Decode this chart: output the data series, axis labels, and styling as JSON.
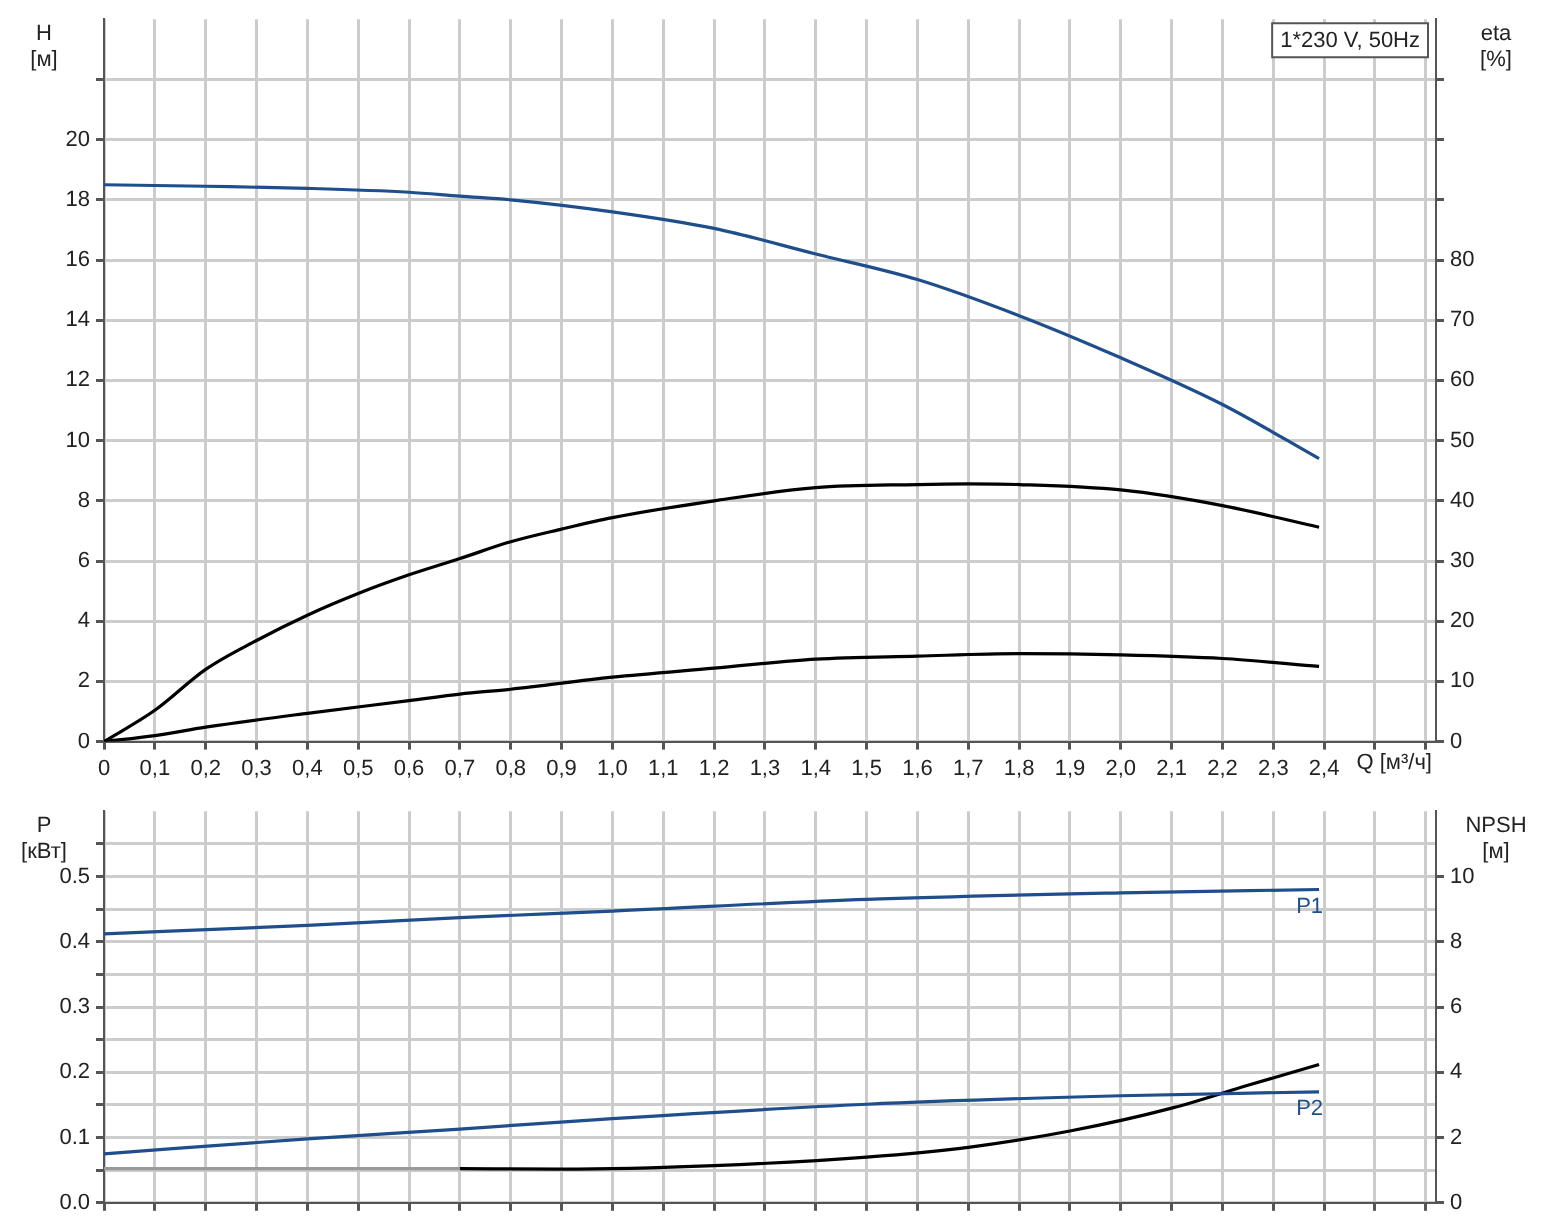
{
  "chart_data": [
    {
      "type": "line",
      "title": "1*230 V, 50Hz",
      "xlabel": "Q [м³/ч]",
      "ylabel": "H [м]",
      "y2label": "eta [%]",
      "grid": true,
      "xlim": [
        0,
        2.62
      ],
      "xticks": [
        0,
        {
          "value": 0.1,
          "label": "0,1"
        },
        {
          "value": 0.2,
          "label": "0,2"
        },
        {
          "value": 0.3,
          "label": "0,3"
        },
        {
          "value": 0.4,
          "label": "0,4"
        },
        {
          "value": 0.5,
          "label": "0,5"
        },
        {
          "value": 0.6,
          "label": "0,6"
        },
        {
          "value": 0.7,
          "label": "0,7"
        },
        {
          "value": 0.8,
          "label": "0,8"
        },
        {
          "value": 0.9,
          "label": "0,9"
        },
        {
          "value": 1,
          "label": "1,0"
        },
        {
          "value": 1.1,
          "label": "1,1"
        },
        {
          "value": 1.2,
          "label": "1,2"
        },
        {
          "value": 1.3,
          "label": "1,3"
        },
        {
          "value": 1.4,
          "label": "1,4"
        },
        {
          "value": 1.5,
          "label": "1,5"
        },
        {
          "value": 1.6,
          "label": "1,6"
        },
        {
          "value": 1.7,
          "label": "1,7"
        },
        {
          "value": 1.8,
          "label": "1,8"
        },
        {
          "value": 1.9,
          "label": "1,9"
        },
        {
          "value": 2,
          "label": "2,0"
        },
        {
          "value": 2.1,
          "label": "2,1"
        },
        {
          "value": 2.2,
          "label": "2,2"
        },
        {
          "value": 2.3,
          "label": "2,3"
        },
        {
          "value": 2.4,
          "label": "2,4"
        },
        {
          "value": 2.5,
          "label": null
        },
        {
          "value": 2.6,
          "label": null
        }
      ],
      "ylim": [
        0,
        24
      ],
      "yticks": [
        0,
        2,
        4,
        6,
        8,
        10,
        12,
        14,
        16,
        18,
        20,
        {
          "value": 22,
          "label": null
        }
      ],
      "y2lim": [
        0,
        120
      ],
      "y2ticks": [
        0,
        10,
        20,
        30,
        40,
        50,
        60,
        70,
        80,
        {
          "value": 90,
          "label": null
        },
        {
          "value": 100,
          "label": null
        },
        {
          "value": 110,
          "label": null
        }
      ],
      "series": [
        {
          "color": "#1f4e8c",
          "x": [
            0,
            0.2,
            0.4,
            0.6,
            0.7,
            0.8,
            1.0,
            1.2,
            1.4,
            1.6,
            1.8,
            2.0,
            2.2,
            2.39
          ],
          "values": [
            18.5,
            18.45,
            18.38,
            18.25,
            18.12,
            18.0,
            17.6,
            17.05,
            16.2,
            15.35,
            14.15,
            12.75,
            11.2,
            9.4
          ]
        },
        {
          "color": "#000000",
          "axis": "y2",
          "x": [
            0,
            0.1,
            0.2,
            0.3,
            0.4,
            0.5,
            0.6,
            0.7,
            0.8,
            0.9,
            1.0,
            1.2,
            1.4,
            1.6,
            1.7,
            1.8,
            2.0,
            2.2,
            2.39
          ],
          "values": [
            0,
            5.2,
            12,
            16.8,
            21,
            24.6,
            27.7,
            30.4,
            33.2,
            35.3,
            37.2,
            40,
            42.2,
            42.7,
            42.8,
            42.7,
            41.8,
            39.2,
            35.6
          ]
        },
        {
          "color": "#000000",
          "axis": "y2",
          "x": [
            0,
            0.1,
            0.2,
            0.4,
            0.6,
            0.7,
            0.8,
            1.0,
            1.2,
            1.4,
            1.6,
            1.8,
            2.0,
            2.2,
            2.39
          ],
          "values": [
            0,
            1.0,
            2.4,
            4.7,
            6.8,
            7.9,
            8.7,
            10.7,
            12.2,
            13.7,
            14.2,
            14.6,
            14.4,
            13.8,
            12.5
          ]
        }
      ]
    },
    {
      "type": "line",
      "ylabel": "P [кВт]",
      "y2label": "NPSH [м]",
      "grid": true,
      "tick_labels": "y",
      "xlim": [
        0,
        2.62
      ],
      "xticks": [
        0,
        0.1,
        0.2,
        0.3,
        0.4,
        0.5,
        0.6,
        0.7,
        0.8,
        0.9,
        1,
        1.1,
        1.2,
        1.3,
        1.4,
        1.5,
        1.6,
        1.7,
        1.8,
        1.9,
        2,
        2.1,
        2.2,
        2.3,
        2.4,
        2.5,
        2.6
      ],
      "ylim": [
        0,
        0.6
      ],
      "yticks": [
        {
          "value": 0,
          "label": "0.0"
        },
        {
          "value": 0.05,
          "label": null
        },
        0.1,
        {
          "value": 0.15,
          "label": null
        },
        0.2,
        {
          "value": 0.25,
          "label": null
        },
        0.3,
        {
          "value": 0.35,
          "label": null
        },
        0.4,
        {
          "value": 0.45,
          "label": null
        },
        0.5,
        {
          "value": 0.55,
          "label": null
        }
      ],
      "y2lim": [
        0,
        12
      ],
      "y2ticks": [
        0,
        2,
        4,
        6,
        8,
        10
      ],
      "series": [
        {
          "name": "P1",
          "color": "#1f4e8c",
          "x": [
            0,
            0.4,
            0.7,
            1.0,
            1.5,
            2.0,
            2.39
          ],
          "values": [
            0.412,
            0.425,
            0.437,
            0.447,
            0.465,
            0.475,
            0.48
          ]
        },
        {
          "name": "P2",
          "color": "#1f4e8c",
          "x": [
            0,
            0.4,
            0.7,
            1.0,
            1.5,
            2.0,
            2.39
          ],
          "values": [
            0.075,
            0.098,
            0.113,
            0.129,
            0.151,
            0.164,
            0.17
          ]
        },
        {
          "color": "#999999",
          "axis": "y2",
          "x": [
            0,
            0.7
          ],
          "values": [
            1.05,
            1.05
          ]
        },
        {
          "color": "#000000",
          "axis": "y2",
          "x": [
            0.7,
            0.9,
            1.2,
            1.5,
            1.7,
            1.9,
            2.1,
            2.25,
            2.39
          ],
          "values": [
            1.05,
            1.03,
            1.14,
            1.4,
            1.7,
            2.2,
            2.9,
            3.6,
            4.24
          ]
        }
      ]
    }
  ]
}
